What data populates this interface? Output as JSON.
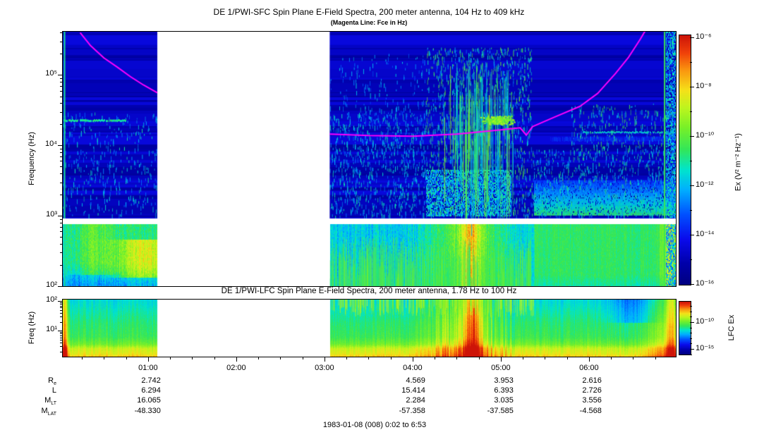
{
  "subtitle": "(Magenta Line: Fce in Hz)",
  "footer": "1983-01-08 (008) 0:02 to 6:53",
  "colors": {
    "fce_line": "#ff00ff",
    "axis": "#000000",
    "background": "#ffffff",
    "data_gap": "#ffffff"
  },
  "chart_data": {
    "type": "heatmap",
    "time_range_hours": [
      0.033,
      6.985
    ],
    "data_gap_hours": [
      1.105,
      3.06
    ],
    "time_ticks": {
      "major": [
        {
          "hour": 1,
          "label": "01:00"
        },
        {
          "hour": 2,
          "label": "02:00"
        },
        {
          "hour": 3,
          "label": "03:00"
        },
        {
          "hour": 4,
          "label": "04:00"
        },
        {
          "hour": 5,
          "label": "05:00"
        },
        {
          "hour": 6,
          "label": "06:00"
        }
      ],
      "minor_step_hours": 0.25
    },
    "sfc": {
      "title": "DE 1/PWI-SFC  Spin Plane E-Field Spectra, 200 meter antenna, 104 Hz to 409 kHz",
      "ylabel": "Frequency (Hz)",
      "freq_range_hz": [
        100,
        413000
      ],
      "y_major_ticks": [
        {
          "hz": 100000,
          "label": "10⁵"
        },
        {
          "hz": 10000,
          "label": "10⁴"
        },
        {
          "hz": 1000,
          "label": "10³"
        },
        {
          "hz": 100,
          "label": "10²"
        }
      ],
      "white_band_hz": [
        757,
        912
      ],
      "colorbar": {
        "label": "Ex (V² m⁻² Hz⁻¹)",
        "exp_range": [
          -6,
          -16
        ],
        "major_ticks": [
          {
            "exp": -6,
            "label": "10⁻⁶"
          },
          {
            "exp": -8,
            "label": "10⁻⁸"
          },
          {
            "exp": -10,
            "label": "10⁻¹⁰"
          },
          {
            "exp": -12,
            "label": "10⁻¹²"
          },
          {
            "exp": -14,
            "label": "10⁻¹⁴"
          },
          {
            "exp": -16,
            "label": "10⁻¹⁶"
          }
        ],
        "minor_exps": [
          -7,
          -9,
          -11,
          -13,
          -15
        ]
      },
      "fce_line_hz": [
        [
          [
            0.23,
            400000
          ],
          [
            0.35,
            260000
          ],
          [
            0.5,
            175000
          ],
          [
            0.65,
            130000
          ],
          [
            0.8,
            95000
          ],
          [
            0.95,
            72000
          ],
          [
            1.105,
            56000
          ]
        ],
        [
          [
            3.06,
            14500
          ],
          [
            3.5,
            13800
          ],
          [
            4.0,
            13500
          ],
          [
            4.5,
            14500
          ],
          [
            5.0,
            16600
          ],
          [
            5.22,
            17800
          ],
          [
            5.29,
            14000
          ],
          [
            5.36,
            18500
          ],
          [
            5.6,
            25000
          ],
          [
            5.9,
            36000
          ],
          [
            6.1,
            55000
          ],
          [
            6.3,
            105000
          ],
          [
            6.45,
            180000
          ],
          [
            6.58,
            320000
          ],
          [
            6.64,
            430000
          ]
        ]
      ],
      "texture": {
        "upper_base_v": 0.11,
        "upper_stripe_amp": 0.1,
        "lower": {
          "base_left": 0.45,
          "base_mid": 0.42,
          "base_right": 0.53,
          "blobs": [
            {
              "t": 0.4,
              "st": 0.18,
              "amp": 0.14,
              "r0": 0,
              "r1": 0.8
            },
            {
              "t": 0.95,
              "st": 0.22,
              "amp": 0.3,
              "r0": 0.25,
              "r1": 0.85
            },
            {
              "t": 4.62,
              "st": 0.3,
              "amp": 0.2
            },
            {
              "t": 4.66,
              "st": 0.08,
              "amp": 0.2
            },
            {
              "t": 6.92,
              "st": 0.07,
              "amp": 0.2
            }
          ]
        },
        "speckles": [
          {
            "t": [
              3.06,
              4.15
            ],
            "hz": [
              1000,
              30000
            ],
            "count": 900,
            "v": [
              0.3,
              0.5
            ]
          },
          {
            "t": [
              4.15,
              5.35
            ],
            "hz": [
              1000,
              250000
            ],
            "count": 1500,
            "v": [
              0.32,
              0.62
            ]
          },
          {
            "t": [
              5.35,
              6.99
            ],
            "hz": [
              1000,
              9000
            ],
            "count": 800,
            "v": [
              0.32,
              0.55
            ]
          },
          {
            "t": [
              0.03,
              1.105
            ],
            "hz": [
              1000,
              30000
            ],
            "count": 400,
            "v": [
              0.3,
              0.5
            ]
          },
          {
            "t": [
              5.8,
              6.99
            ],
            "hz": [
              9000,
              40000
            ],
            "count": 300,
            "v": [
              0.33,
              0.6
            ]
          },
          {
            "t": [
              3.06,
              4.15
            ],
            "hz": [
              30000,
              200000
            ],
            "count": 150,
            "v": [
              0.28,
              0.45
            ]
          }
        ],
        "streaks": {
          "t": [
            4.15,
            5.35
          ],
          "peak": 4.72,
          "hz_top": [
            8000,
            150000
          ],
          "dec": [
            0.2,
            1.5
          ],
          "count": 170,
          "v": [
            0.35,
            0.68
          ]
        },
        "flames": {
          "t": [
            3.06,
            5.35
          ],
          "count": 600,
          "v": [
            0.5,
            0.64
          ],
          "len": [
            10,
            70
          ]
        },
        "chorus": {
          "t": 4.97,
          "st": 0.16,
          "hz": 23000,
          "sdec": 0.07,
          "count": 280,
          "v": 0.64
        },
        "hlines": [
          {
            "t": [
              0.033,
              0.75
            ],
            "hz": 23000,
            "w": 3,
            "v": 0.5
          },
          {
            "t": [
              5.93,
              6.985
            ],
            "hz": 15500,
            "w": 2,
            "v": 0.46
          },
          {
            "t": [
              5.55,
              6.985
            ],
            "hz": 13000,
            "w": 6,
            "v": 0.26,
            "alpha": 0.5
          }
        ],
        "vlines": [
          {
            "t": 6.85,
            "w": 2,
            "v": 0.55
          },
          {
            "t": 0.045,
            "w": 2,
            "v": 0.5
          }
        ],
        "right_edge": {
          "t": [
            6.87,
            6.985
          ],
          "v": [
            0.25,
            0.52
          ]
        },
        "green_band": {
          "t": [
            5.38,
            6.985
          ],
          "hz": [
            1050,
            3200
          ],
          "v_bottom": 0.52,
          "v_top": 0.25
        },
        "burst_low": {
          "t": [
            4.15,
            5.12
          ],
          "hz": [
            1000,
            4500
          ],
          "v": 0.4,
          "noise": 0.12
        }
      }
    },
    "lfc": {
      "title": "DE 1/PWI-LFC  Spin Plane E-Field Spectra, 200 meter antenna, 1.78 Hz to 100 Hz",
      "ylabel": "Freq (Hz)",
      "freq_range_hz": [
        1.35,
        112
      ],
      "y_major_ticks": [
        {
          "hz": 100,
          "label": "10²"
        },
        {
          "hz": 10,
          "label": "10¹"
        }
      ],
      "colorbar": {
        "label": "LFC Ex",
        "major_ticks": [
          {
            "exp": -10,
            "label": "10⁻¹⁰"
          },
          {
            "exp": -15,
            "label": "10⁻¹⁵"
          }
        ],
        "minor_exps": [
          -7,
          -8,
          -9,
          -11,
          -12,
          -13,
          -14,
          -16
        ]
      },
      "texture": {
        "row_profile": [
          [
            0,
            0.44
          ],
          [
            0.4,
            0.52
          ],
          [
            0.65,
            0.55
          ],
          [
            0.78,
            0.62
          ],
          [
            0.85,
            0.72
          ],
          [
            0.95,
            0.76
          ],
          [
            1,
            0.82
          ]
        ],
        "col_noise": 0.07,
        "burst_t": [
          4.2,
          5.15
        ],
        "blobs": [
          {
            "t": 0.05,
            "st": 0.025,
            "amp": 0.34
          },
          {
            "t": 4.68,
            "st": 0.07,
            "amp": 0.3
          },
          {
            "t": 4.55,
            "st": 0.28,
            "amp": 0.13
          },
          {
            "t": 6.93,
            "st": 0.05,
            "amp": 0.26
          },
          {
            "t": 6.78,
            "st": 0.12,
            "amp": 0.1
          },
          {
            "t": 6.5,
            "st": 0.17,
            "amp": -0.13,
            "r0": 0,
            "r1": 0.4
          }
        ],
        "flames": {
          "t": [
            3.06,
            5.4
          ],
          "count": 260,
          "v": [
            0.6,
            0.74
          ],
          "len": [
            8,
            25
          ]
        }
      }
    }
  },
  "ephemeris": {
    "row_labels": [
      {
        "main": "R",
        "sub": "e"
      },
      {
        "main": "L",
        "sub": ""
      },
      {
        "main": "M",
        "sub": "LT"
      },
      {
        "main": "M",
        "sub": "LAT"
      }
    ],
    "columns": [
      {
        "time": "01:00",
        "hour": 1,
        "values": [
          "2.742",
          "6.294",
          "16.065",
          "-48.330"
        ]
      },
      {
        "time": "04:00",
        "hour": 4,
        "values": [
          "4.569",
          "15.414",
          "2.284",
          "-57.358"
        ]
      },
      {
        "time": "05:00",
        "hour": 5,
        "values": [
          "3.953",
          "6.393",
          "3.035",
          "-37.585"
        ]
      },
      {
        "time": "06:00",
        "hour": 6,
        "values": [
          "2.616",
          "2.726",
          "3.556",
          "-4.568"
        ]
      }
    ]
  }
}
